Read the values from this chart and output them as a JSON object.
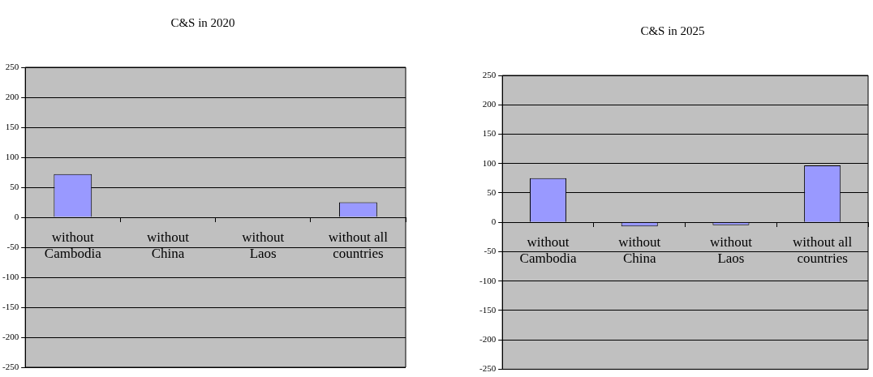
{
  "chart_data": [
    {
      "type": "bar",
      "title": "C&S in 2020",
      "categories": [
        "without\nCambodia",
        "without\nChina",
        "without\nLaos",
        "without all\ncountries"
      ],
      "values": [
        72,
        0,
        0,
        25
      ],
      "color": "#9999ff",
      "ylim": [
        -250,
        250
      ],
      "yticks": [
        -250,
        -200,
        -150,
        -100,
        -50,
        0,
        50,
        100,
        150,
        200,
        250
      ],
      "grid": "y",
      "legend": false
    },
    {
      "type": "bar",
      "title": "C&S in 2025",
      "categories": [
        "without\nCambodia",
        "without\nChina",
        "without\nLaos",
        "without all\ncountries"
      ],
      "values": [
        75,
        -7,
        -5,
        97
      ],
      "color": "#9999ff",
      "ylim": [
        -250,
        250
      ],
      "yticks": [
        -250,
        -200,
        -150,
        -100,
        -50,
        0,
        50,
        100,
        150,
        200,
        250
      ],
      "grid": "y",
      "legend": false
    }
  ]
}
